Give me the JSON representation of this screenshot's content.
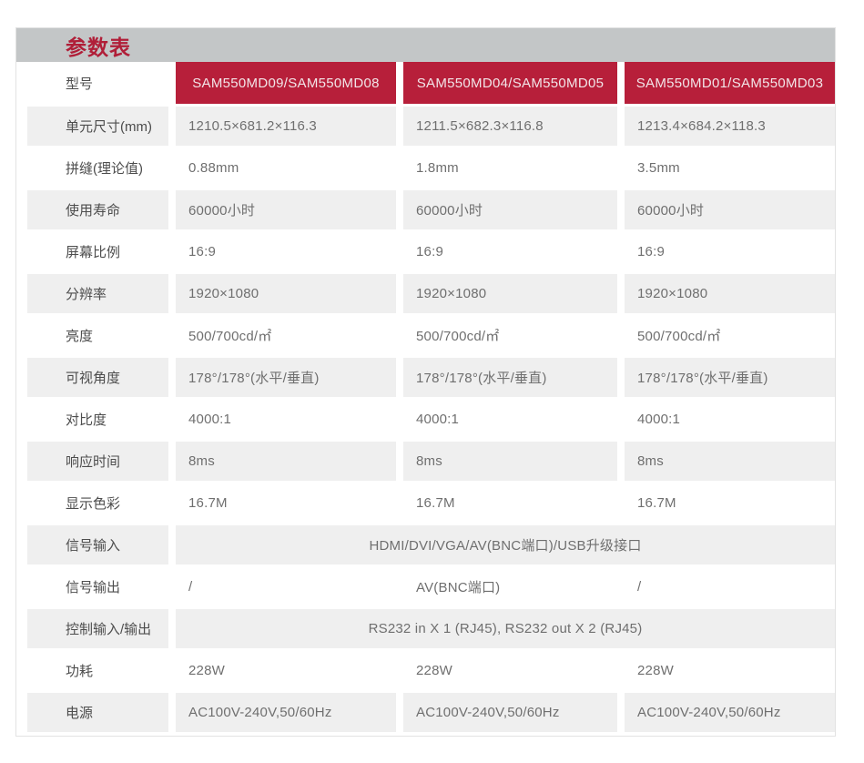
{
  "title": "参数表",
  "colors": {
    "accent_red": "#b71f3a",
    "title_red": "#b01e38",
    "band_gray": "#c3c6c7",
    "row_gray": "#efefef",
    "header_text": "#f2e5e8",
    "label_text": "#4d4d4d",
    "value_text": "#6f6f6f"
  },
  "header": {
    "label": "型号",
    "models": [
      "SAM550MD09/SAM550MD08",
      "SAM550MD04/SAM550MD05",
      "SAM550MD01/SAM550MD03"
    ]
  },
  "rows": [
    {
      "label": "单元尺寸(mm)",
      "values": [
        "1210.5×681.2×116.3",
        "1211.5×682.3×116.8",
        "1213.4×684.2×118.3"
      ]
    },
    {
      "label": "拼缝(理论值)",
      "values": [
        "0.88mm",
        "1.8mm",
        "3.5mm"
      ]
    },
    {
      "label": "使用寿命",
      "values": [
        "60000小时",
        "60000小时",
        "60000小时"
      ]
    },
    {
      "label": "屏幕比例",
      "values": [
        "16:9",
        "16:9",
        "16:9"
      ]
    },
    {
      "label": "分辨率",
      "values": [
        "1920×1080",
        "1920×1080",
        "1920×1080"
      ]
    },
    {
      "label": "亮度",
      "values": [
        "500/700cd/㎡",
        "500/700cd/㎡",
        "500/700cd/㎡"
      ]
    },
    {
      "label": "可视角度",
      "values": [
        "178°/178°(水平/垂直)",
        "178°/178°(水平/垂直)",
        "178°/178°(水平/垂直)"
      ]
    },
    {
      "label": "对比度",
      "values": [
        "4000:1",
        "4000:1",
        "4000:1"
      ]
    },
    {
      "label": "响应时间",
      "values": [
        "8ms",
        "8ms",
        "8ms"
      ]
    },
    {
      "label": "显示色彩",
      "values": [
        "16.7M",
        "16.7M",
        "16.7M"
      ]
    },
    {
      "label": "信号输入",
      "span": "HDMI/DVI/VGA/AV(BNC端口)/USB升级接口"
    },
    {
      "label": "信号输出",
      "values": [
        "/",
        "AV(BNC端口)",
        "/"
      ]
    },
    {
      "label": "控制输入/输出",
      "span": "RS232 in X 1 (RJ45), RS232 out X 2 (RJ45)"
    },
    {
      "label": "功耗",
      "values": [
        "228W",
        "228W",
        "228W"
      ]
    },
    {
      "label": "电源",
      "values": [
        "AC100V-240V,50/60Hz",
        "AC100V-240V,50/60Hz",
        "AC100V-240V,50/60Hz"
      ]
    }
  ]
}
